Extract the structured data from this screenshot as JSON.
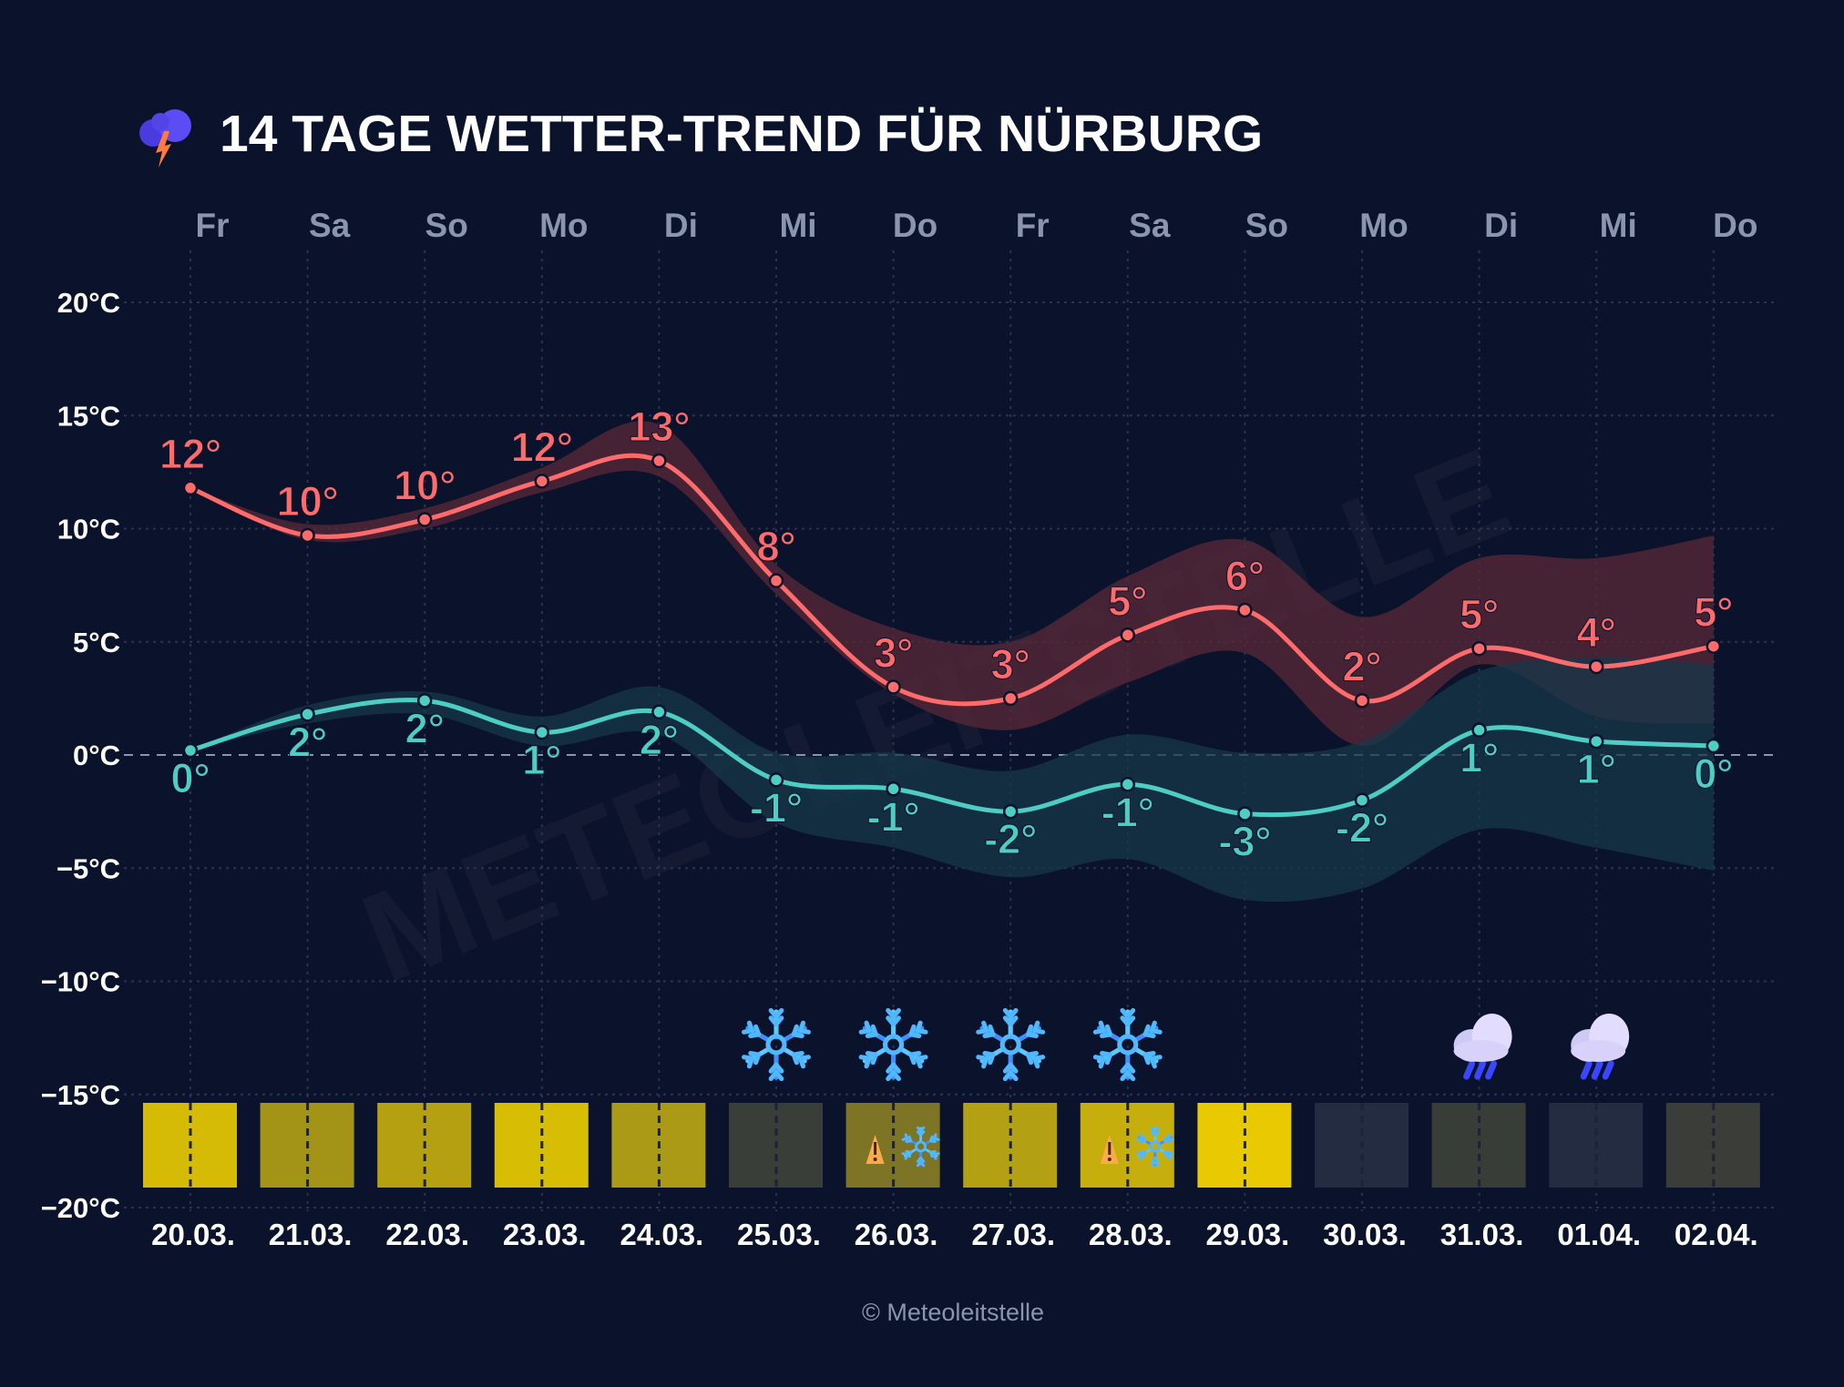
{
  "title": "14 TAGE WETTER-TREND FÜR NÜRBURG",
  "title_icon": "thunder-cloud-icon",
  "copyright": "© Meteoleitstelle",
  "watermark": "METEOLEITSTELLE",
  "colors": {
    "background": "#0b122b",
    "high": "#ff6b6b",
    "low": "#4ecdc4",
    "high_band": "#5a2a3a",
    "low_band": "#17384a",
    "axis_text": "#ffffff",
    "day_text": "#8a95b0",
    "grid": "#2a3350"
  },
  "chart_data": {
    "type": "line",
    "title": "14 TAGE WETTER-TREND FÜR NÜRBURG",
    "ylim": [
      -20,
      20
    ],
    "yticks": [
      20,
      15,
      10,
      5,
      0,
      -5,
      -10,
      -15,
      -20
    ],
    "ytick_labels": [
      "20°C",
      "15°C",
      "10°C",
      "5°C",
      "0°C",
      "−5°C",
      "−10°C",
      "−15°C",
      "−20°C"
    ],
    "grid": true,
    "days": [
      "Fr",
      "Sa",
      "So",
      "Mo",
      "Di",
      "Mi",
      "Do",
      "Fr",
      "Sa",
      "So",
      "Mo",
      "Di",
      "Mi",
      "Do"
    ],
    "dates": [
      "20.03.",
      "21.03.",
      "22.03.",
      "23.03.",
      "24.03.",
      "25.03.",
      "26.03.",
      "27.03.",
      "28.03.",
      "29.03.",
      "30.03.",
      "31.03.",
      "01.04.",
      "02.04."
    ],
    "series": [
      {
        "key": "high",
        "values": [
          11.8,
          9.7,
          10.4,
          12.1,
          13.0,
          7.7,
          3.0,
          2.5,
          5.3,
          6.4,
          2.4,
          4.7,
          3.9,
          4.8
        ],
        "labels": [
          "12°",
          "10°",
          "10°",
          "12°",
          "13°",
          "8°",
          "3°",
          "3°",
          "5°",
          "6°",
          "2°",
          "5°",
          "4°",
          "5°"
        ],
        "band_upper": [
          11.8,
          10.2,
          10.9,
          12.7,
          14.6,
          8.4,
          5.6,
          5.0,
          7.9,
          9.5,
          6.1,
          8.7,
          8.7,
          9.7
        ],
        "band_lower": [
          11.8,
          9.5,
          10.0,
          11.6,
          12.3,
          7.1,
          2.7,
          1.1,
          3.2,
          4.5,
          0.4,
          4.0,
          1.7,
          1.4
        ]
      },
      {
        "key": "low",
        "values": [
          0.2,
          1.8,
          2.4,
          1.0,
          1.9,
          -1.1,
          -1.5,
          -2.5,
          -1.3,
          -2.6,
          -2.0,
          1.1,
          0.6,
          0.4
        ],
        "labels": [
          "0°",
          "2°",
          "2°",
          "1°",
          "2°",
          "-1°",
          "-1°",
          "-2°",
          "-1°",
          "-3°",
          "-2°",
          "1°",
          "1°",
          "0°"
        ],
        "band_upper": [
          0.2,
          2.2,
          2.8,
          1.7,
          3.0,
          0.1,
          0.1,
          -0.7,
          0.9,
          0.1,
          0.6,
          3.7,
          4.3,
          4.0
        ],
        "band_lower": [
          0.2,
          1.4,
          1.8,
          0.4,
          0.9,
          -3.0,
          -4.1,
          -5.4,
          -4.6,
          -6.4,
          -5.9,
          -3.3,
          -4.1,
          -5.1
        ]
      }
    ],
    "sunshine_colors": [
      "#d6bb06",
      "#a39418",
      "#b5a012",
      "#d8bd05",
      "#ab9a15",
      "#3a3e38",
      "#7d7426",
      "#b4a013",
      "#c6af0d",
      "#e8c902",
      "#232c40",
      "#383d38",
      "#232c40",
      "#3a3d38"
    ],
    "weather_icons": [
      "",
      "",
      "",
      "",
      "",
      "snowflake-icon",
      "snowflake-icon",
      "snowflake-icon",
      "snowflake-icon",
      "",
      "",
      "rain-cloud-icon",
      "rain-cloud-icon",
      ""
    ],
    "warnings": [
      "",
      "",
      "",
      "",
      "",
      "",
      "snow-warning",
      "",
      "snow-warning",
      "",
      "",
      "",
      "",
      ""
    ]
  }
}
